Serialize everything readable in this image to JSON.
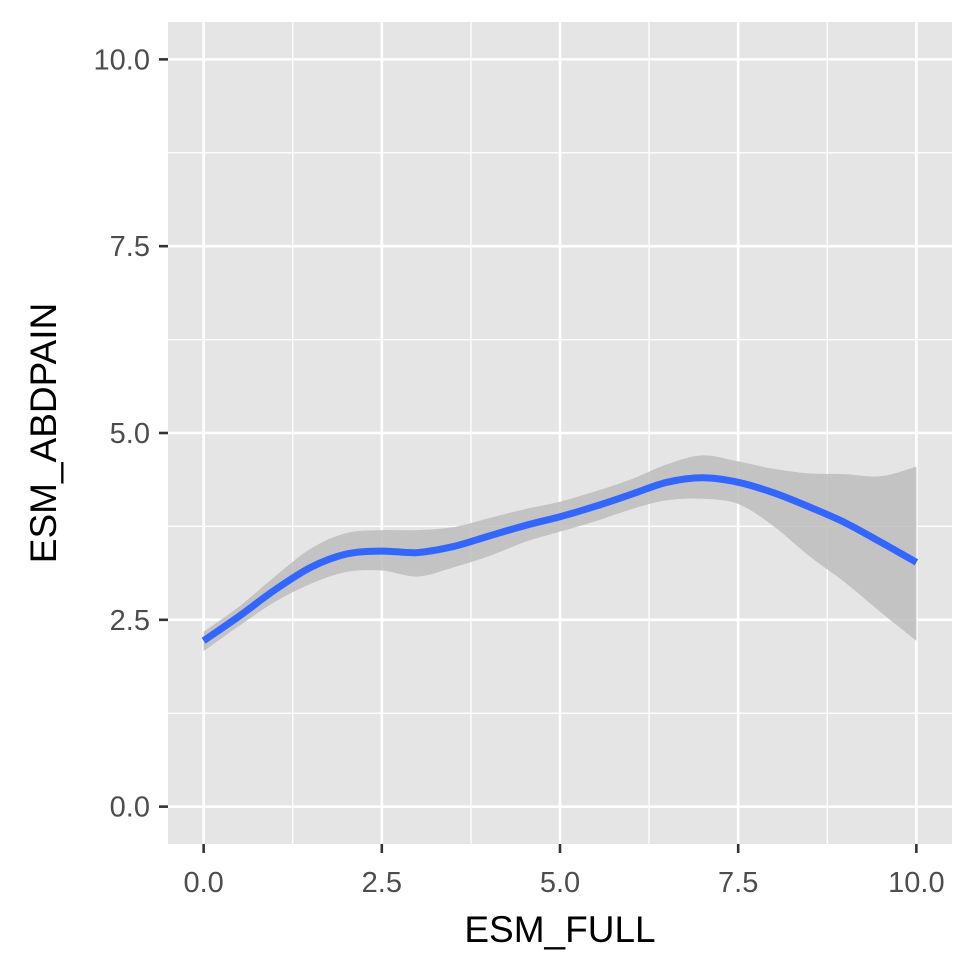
{
  "chart_data": {
    "type": "line",
    "title": "",
    "xlabel": "ESM_FULL",
    "ylabel": "ESM_ABDPAIN",
    "xlim": [
      -0.5,
      10.5
    ],
    "ylim": [
      -0.5,
      10.5
    ],
    "x_ticks": [
      0.0,
      2.5,
      5.0,
      7.5,
      10.0
    ],
    "x_tick_labels": [
      "0.0",
      "2.5",
      "5.0",
      "7.5",
      "10.0"
    ],
    "y_ticks": [
      0.0,
      2.5,
      5.0,
      7.5,
      10.0
    ],
    "y_tick_labels": [
      "0.0",
      "2.5",
      "5.0",
      "7.5",
      "10.0"
    ],
    "grid": true,
    "legend": "none",
    "series": [
      {
        "x": [
          0.0,
          0.5,
          1.0,
          1.5,
          2.0,
          2.5,
          3.0,
          3.5,
          4.0,
          4.5,
          5.0,
          5.5,
          6.0,
          6.5,
          7.0,
          7.5,
          8.0,
          8.5,
          9.0,
          9.5,
          10.0
        ],
        "y": [
          2.22,
          2.55,
          2.9,
          3.2,
          3.38,
          3.42,
          3.4,
          3.48,
          3.62,
          3.76,
          3.88,
          4.02,
          4.18,
          4.34,
          4.4,
          4.34,
          4.2,
          4.01,
          3.8,
          3.54,
          3.27
        ],
        "ci_lower": [
          2.08,
          2.42,
          2.74,
          2.98,
          3.14,
          3.16,
          3.08,
          3.2,
          3.35,
          3.54,
          3.68,
          3.82,
          3.98,
          4.1,
          4.12,
          4.05,
          3.75,
          3.35,
          3.0,
          2.6,
          2.22
        ],
        "ci_upper": [
          2.34,
          2.68,
          3.08,
          3.45,
          3.66,
          3.7,
          3.7,
          3.74,
          3.86,
          3.98,
          4.08,
          4.22,
          4.38,
          4.58,
          4.7,
          4.62,
          4.52,
          4.46,
          4.45,
          4.42,
          4.55
        ],
        "color": "#3366ff",
        "ci_color": "#bdbdbd"
      }
    ]
  },
  "colors": {
    "panel_background": "#e5e5e5",
    "grid_line": "#ffffff",
    "line": "#3366ff",
    "ribbon": "#bdbdbd",
    "tick_text": "#4d4d4d",
    "tick_mark": "#333333"
  }
}
